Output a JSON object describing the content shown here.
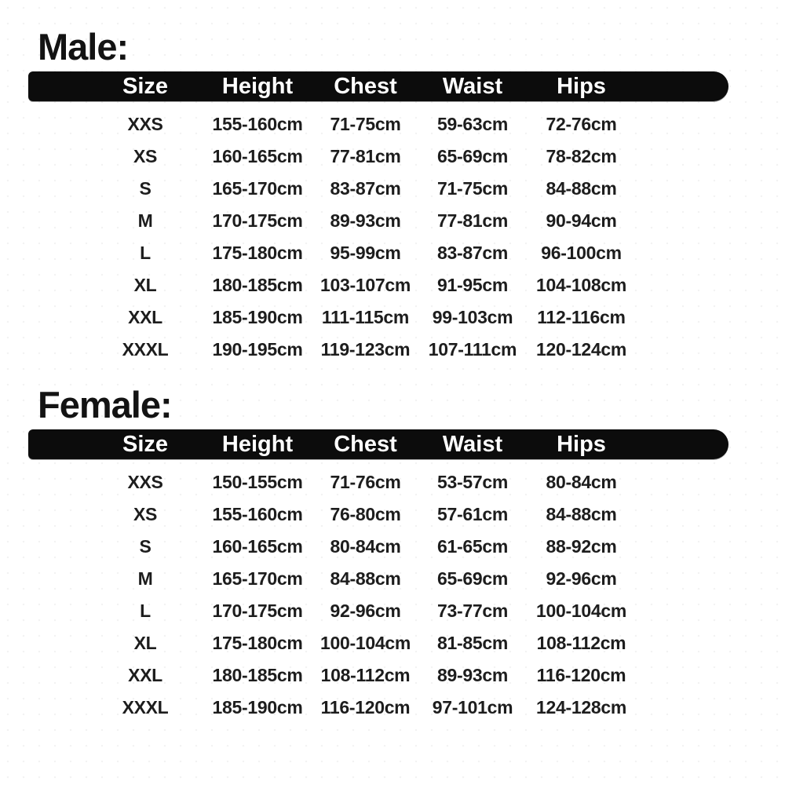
{
  "page": {
    "background_color": "#ffffff",
    "header_bar_color": "#0c0c0c",
    "header_text_color": "#ffffff",
    "body_text_color": "#1d1d1d"
  },
  "sections": [
    {
      "title": "Male:",
      "columns": [
        "Size",
        "Height",
        "Chest",
        "Waist",
        "Hips"
      ],
      "rows": [
        [
          "XXS",
          "155-160cm",
          "71-75cm",
          "59-63cm",
          "72-76cm"
        ],
        [
          "XS",
          "160-165cm",
          "77-81cm",
          "65-69cm",
          "78-82cm"
        ],
        [
          "S",
          "165-170cm",
          "83-87cm",
          "71-75cm",
          "84-88cm"
        ],
        [
          "M",
          "170-175cm",
          "89-93cm",
          "77-81cm",
          "90-94cm"
        ],
        [
          "L",
          "175-180cm",
          "95-99cm",
          "83-87cm",
          "96-100cm"
        ],
        [
          "XL",
          "180-185cm",
          "103-107cm",
          "91-95cm",
          "104-108cm"
        ],
        [
          "XXL",
          "185-190cm",
          "111-115cm",
          "99-103cm",
          "112-116cm"
        ],
        [
          "XXXL",
          "190-195cm",
          "119-123cm",
          "107-111cm",
          "120-124cm"
        ]
      ]
    },
    {
      "title": "Female:",
      "columns": [
        "Size",
        "Height",
        "Chest",
        "Waist",
        "Hips"
      ],
      "rows": [
        [
          "XXS",
          "150-155cm",
          "71-76cm",
          "53-57cm",
          "80-84cm"
        ],
        [
          "XS",
          "155-160cm",
          "76-80cm",
          "57-61cm",
          "84-88cm"
        ],
        [
          "S",
          "160-165cm",
          "80-84cm",
          "61-65cm",
          "88-92cm"
        ],
        [
          "M",
          "165-170cm",
          "84-88cm",
          "65-69cm",
          "92-96cm"
        ],
        [
          "L",
          "170-175cm",
          "92-96cm",
          "73-77cm",
          "100-104cm"
        ],
        [
          "XL",
          "175-180cm",
          "100-104cm",
          "81-85cm",
          "108-112cm"
        ],
        [
          "XXL",
          "180-185cm",
          "108-112cm",
          "89-93cm",
          "116-120cm"
        ],
        [
          "XXXL",
          "185-190cm",
          "116-120cm",
          "97-101cm",
          "124-128cm"
        ]
      ]
    }
  ]
}
